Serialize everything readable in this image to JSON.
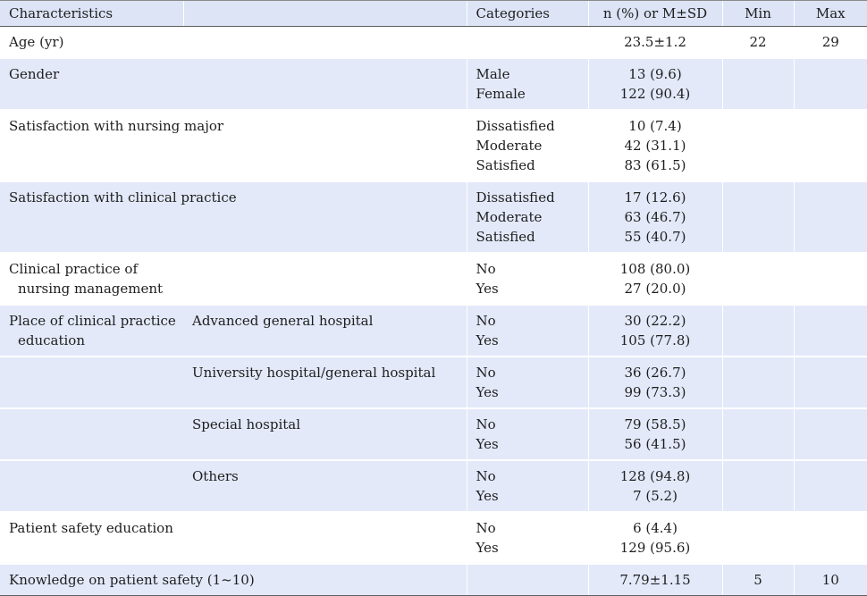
{
  "table": {
    "headers": [
      "Characteristics",
      "",
      "Categories",
      "n (%) or M±SD",
      "Min",
      "Max"
    ],
    "rows": [
      {
        "c1": [
          "Age (yr)"
        ],
        "c2": [],
        "cat": [],
        "val": [
          "23.5±1.2"
        ],
        "min": "22",
        "max": "29"
      },
      {
        "c1": [
          "Gender"
        ],
        "c2": [],
        "cat": [
          "Male",
          "Female"
        ],
        "val": [
          "13 (9.6)",
          "122 (90.4)"
        ],
        "min": "",
        "max": ""
      },
      {
        "c1": [
          "Satisfaction with nursing major"
        ],
        "c2": [],
        "cat": [
          "Dissatisfied",
          "Moderate",
          "Satisfied"
        ],
        "val": [
          "10 (7.4)",
          "42 (31.1)",
          "83 (61.5)"
        ],
        "min": "",
        "max": ""
      },
      {
        "c1": [
          "Satisfaction with clinical practice"
        ],
        "c2": [],
        "cat": [
          "Dissatisfied",
          "Moderate",
          "Satisfied"
        ],
        "val": [
          "17 (12.6)",
          "63 (46.7)",
          "55 (40.7)"
        ],
        "min": "",
        "max": ""
      },
      {
        "c1": [
          "Clinical practice of",
          "nursing management"
        ],
        "c2": [],
        "cat": [
          "No",
          "Yes"
        ],
        "val": [
          "108 (80.0)",
          "27 (20.0)"
        ],
        "min": "",
        "max": ""
      },
      {
        "c1": [
          "Place of clinical practice",
          "education"
        ],
        "c2": [
          "Advanced general hospital"
        ],
        "cat": [
          "No",
          "Yes"
        ],
        "val": [
          "30 (22.2)",
          "105 (77.8)"
        ],
        "min": "",
        "max": ""
      },
      {
        "c1": [],
        "c2": [
          "University hospital/general hospital"
        ],
        "cat": [
          "No",
          "Yes"
        ],
        "val": [
          "36 (26.7)",
          "99 (73.3)"
        ],
        "min": "",
        "max": ""
      },
      {
        "c1": [],
        "c2": [
          "Special hospital"
        ],
        "cat": [
          "No",
          "Yes"
        ],
        "val": [
          "79 (58.5)",
          "56 (41.5)"
        ],
        "min": "",
        "max": ""
      },
      {
        "c1": [],
        "c2": [
          "Others"
        ],
        "cat": [
          "No",
          "Yes"
        ],
        "val": [
          "128 (94.8)",
          "7 (5.2)"
        ],
        "min": "",
        "max": ""
      },
      {
        "c1": [
          "Patient safety education"
        ],
        "c2": [],
        "cat": [
          "No",
          "Yes"
        ],
        "val": [
          "6 (4.4)",
          "129 (95.6)"
        ],
        "min": "",
        "max": ""
      },
      {
        "c1": [
          "Knowledge on patient safety (1~10)"
        ],
        "c2": [],
        "cat": [],
        "val": [
          "7.79±1.15"
        ],
        "min": "5",
        "max": "10"
      }
    ]
  }
}
